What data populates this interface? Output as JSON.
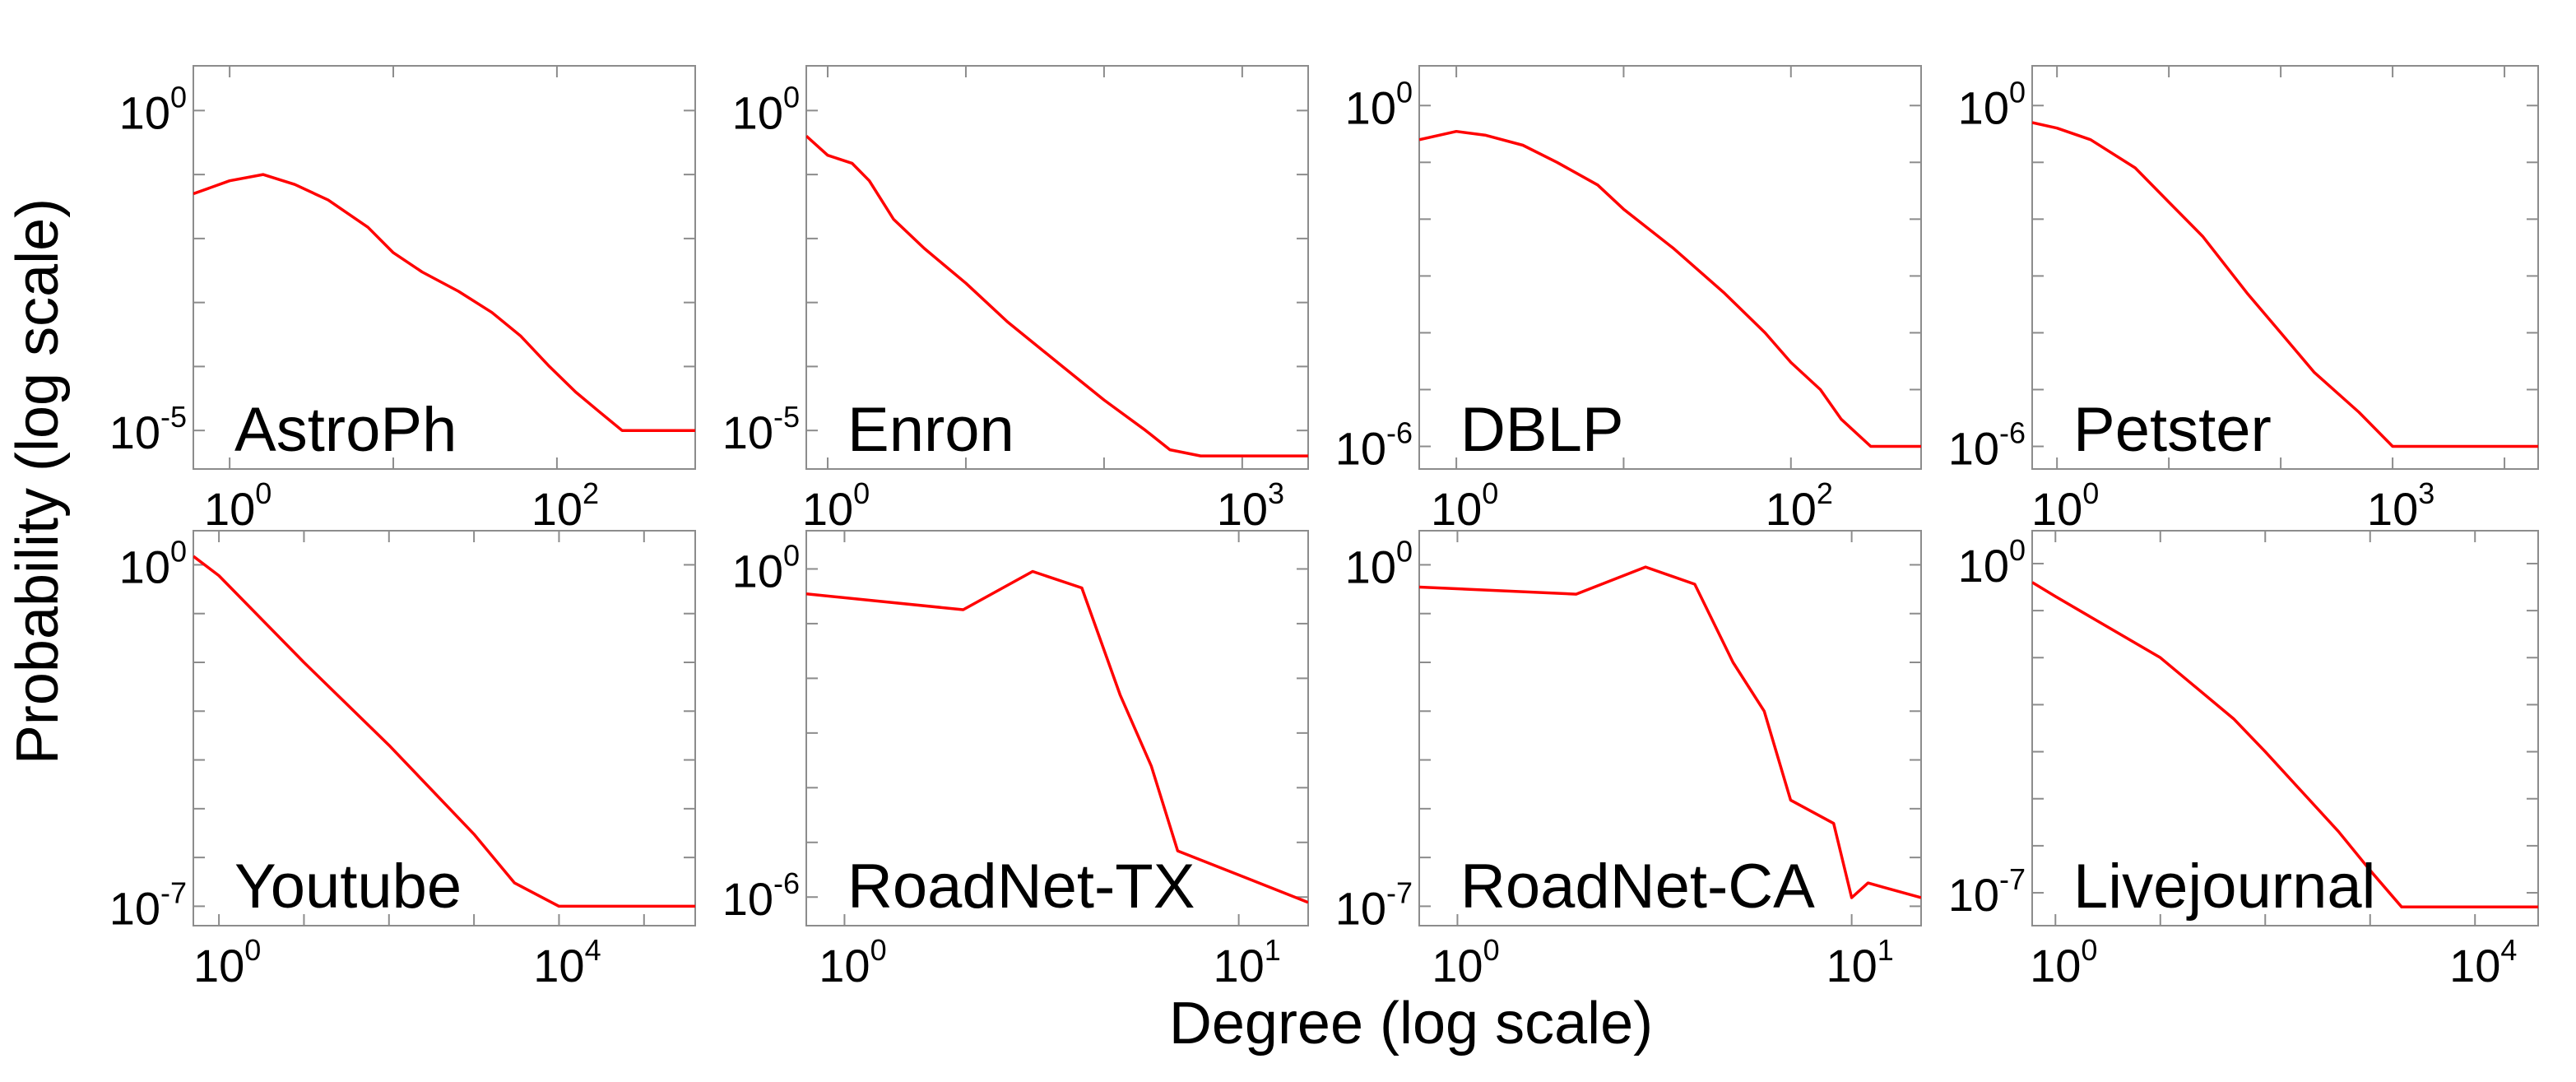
{
  "figure": {
    "xlabel": "Degree (log scale)",
    "ylabel": "Probability (log scale)",
    "line_color": "#ff0000",
    "frame_color": "#8c8c8c"
  },
  "chart_data": [
    {
      "type": "line",
      "title": "AstroPh",
      "xlabel": "Degree (log scale)",
      "ylabel": "Probability (log scale)",
      "xscale": "log",
      "yscale": "log",
      "xlim": [
        0.6,
        700
      ],
      "ylim": [
        2.5e-06,
        5
      ],
      "xticks": [
        1,
        100
      ],
      "xtick_exp": [
        "0",
        "2"
      ],
      "yticks": [
        1,
        1e-05
      ],
      "ytick_exp": [
        "0",
        "-5"
      ],
      "series": [
        {
          "name": "AstroPh",
          "x": [
            0.6,
            1,
            1.6,
            2.5,
            4,
            7,
            10,
            15,
            25,
            40,
            60,
            90,
            130,
            180,
            250,
            700
          ],
          "y": [
            0.05,
            0.08,
            0.1,
            0.07,
            0.04,
            0.015,
            0.006,
            0.003,
            0.0015,
            0.0007,
            0.0003,
            0.0001,
            4e-05,
            2e-05,
            1e-05,
            1e-05
          ]
        }
      ]
    },
    {
      "type": "line",
      "title": "Enron",
      "xlabel": "Degree (log scale)",
      "ylabel": "Probability (log scale)",
      "xscale": "log",
      "yscale": "log",
      "xlim": [
        0.7,
        3000
      ],
      "ylim": [
        2.5e-06,
        5
      ],
      "xticks": [
        1,
        1000
      ],
      "xtick_exp": [
        "0",
        "3"
      ],
      "yticks": [
        1,
        1e-05
      ],
      "ytick_exp": [
        "0",
        "-5"
      ],
      "series": [
        {
          "name": "Enron",
          "x": [
            0.7,
            1,
            1.5,
            2,
            3,
            5,
            10,
            20,
            50,
            100,
            200,
            300,
            500,
            3000
          ],
          "y": [
            0.4,
            0.2,
            0.15,
            0.08,
            0.02,
            0.007,
            0.002,
            0.0005,
            0.0001,
            3e-05,
            1e-05,
            5e-06,
            4e-06,
            4e-06
          ]
        }
      ]
    },
    {
      "type": "line",
      "title": "DBLP",
      "xlabel": "Degree (log scale)",
      "ylabel": "Probability (log scale)",
      "xscale": "log",
      "yscale": "log",
      "xlim": [
        0.6,
        600
      ],
      "ylim": [
        4e-07,
        5
      ],
      "xticks": [
        1,
        100
      ],
      "xtick_exp": [
        "0",
        "2"
      ],
      "yticks": [
        1,
        1e-06
      ],
      "ytick_exp": [
        "0",
        "-6"
      ],
      "series": [
        {
          "name": "DBLP",
          "x": [
            0.6,
            1,
            1.5,
            2.5,
            4,
            7,
            10,
            20,
            40,
            70,
            100,
            150,
            200,
            300,
            600
          ],
          "y": [
            0.25,
            0.35,
            0.3,
            0.2,
            0.1,
            0.04,
            0.015,
            0.003,
            0.0005,
            0.0001,
            3e-05,
            1e-05,
            3e-06,
            1e-06,
            1e-06
          ]
        }
      ]
    },
    {
      "type": "line",
      "title": "Petster",
      "xlabel": "Degree (log scale)",
      "ylabel": "Probability (log scale)",
      "xscale": "log",
      "yscale": "log",
      "xlim": [
        0.6,
        20000
      ],
      "ylim": [
        4e-07,
        5
      ],
      "xticks": [
        1,
        1000
      ],
      "xtick_exp": [
        "0",
        "3"
      ],
      "yticks": [
        1,
        1e-06
      ],
      "ytick_exp": [
        "0",
        "-6"
      ],
      "series": [
        {
          "name": "Petster",
          "x": [
            0.6,
            1,
            2,
            5,
            10,
            20,
            50,
            100,
            200,
            500,
            1000,
            3000,
            20000
          ],
          "y": [
            0.5,
            0.4,
            0.25,
            0.08,
            0.02,
            0.005,
            0.0005,
            0.0001,
            2e-05,
            4e-06,
            1e-06,
            1e-06,
            1e-06
          ]
        }
      ]
    },
    {
      "type": "line",
      "title": "Youtube",
      "xlabel": "Degree (log scale)",
      "ylabel": "Probability (log scale)",
      "xscale": "log",
      "yscale": "log",
      "xlim": [
        0.5,
        400000
      ],
      "ylim": [
        4e-08,
        5
      ],
      "xticks": [
        1,
        10000
      ],
      "xtick_exp": [
        "0",
        "4"
      ],
      "yticks": [
        1,
        1e-07
      ],
      "ytick_exp": [
        "0",
        "-7"
      ],
      "series": [
        {
          "name": "Youtube",
          "x": [
            0.5,
            1,
            10,
            100,
            1000,
            3000,
            10000,
            400000
          ],
          "y": [
            1.5,
            0.6,
            0.01,
            0.0002,
            3e-06,
            3e-07,
            1e-07,
            1e-07
          ]
        }
      ]
    },
    {
      "type": "line",
      "title": "RoadNet-TX",
      "xlabel": "Degree (log scale)",
      "ylabel": "Probability (log scale)",
      "xscale": "log",
      "yscale": "log",
      "xlim": [
        0.8,
        15
      ],
      "ylim": [
        3e-07,
        5
      ],
      "xticks": [
        1,
        10
      ],
      "xtick_exp": [
        "0",
        "1"
      ],
      "yticks": [
        1,
        1e-06
      ],
      "ytick_exp": [
        "0",
        "-6"
      ],
      "series": [
        {
          "name": "RoadNet-TX",
          "x": [
            0.8,
            2,
            3,
            4,
            5,
            6,
            7,
            15
          ],
          "y": [
            0.35,
            0.18,
            0.9,
            0.45,
            0.005,
            0.00025,
            7e-06,
            8e-07
          ]
        }
      ]
    },
    {
      "type": "line",
      "title": "RoadNet-CA",
      "xlabel": "Degree (log scale)",
      "ylabel": "Probability (log scale)",
      "xscale": "log",
      "yscale": "log",
      "xlim": [
        0.8,
        15
      ],
      "ylim": [
        4e-08,
        5
      ],
      "xticks": [
        1,
        10
      ],
      "xtick_exp": [
        "0",
        "1"
      ],
      "yticks": [
        1,
        1e-07
      ],
      "ytick_exp": [
        "0",
        "-7"
      ],
      "series": [
        {
          "name": "RoadNet-CA",
          "x": [
            0.8,
            2,
            3,
            4,
            5,
            6,
            7,
            9,
            10,
            11,
            15
          ],
          "y": [
            0.35,
            0.25,
            0.9,
            0.4,
            0.01,
            0.001,
            1.5e-05,
            5e-06,
            1.5e-07,
            3e-07,
            1.5e-07
          ]
        }
      ]
    },
    {
      "type": "line",
      "title": "Livejournal",
      "xlabel": "Degree (log scale)",
      "ylabel": "Probability (log scale)",
      "xscale": "log",
      "yscale": "log",
      "xlim": [
        0.6,
        40000
      ],
      "ylim": [
        2e-08,
        5
      ],
      "xticks": [
        1,
        10000
      ],
      "xtick_exp": [
        "0",
        "4"
      ],
      "yticks": [
        1,
        1e-07
      ],
      "ytick_exp": [
        "0",
        "-7"
      ],
      "series": [
        {
          "name": "Livejournal",
          "x": [
            0.6,
            1,
            10,
            50,
            100,
            500,
            1000,
            2000,
            40000
          ],
          "y": [
            0.4,
            0.2,
            0.01,
            0.0005,
            0.0001,
            2e-06,
            3e-07,
            5e-08,
            5e-08
          ]
        }
      ]
    }
  ]
}
